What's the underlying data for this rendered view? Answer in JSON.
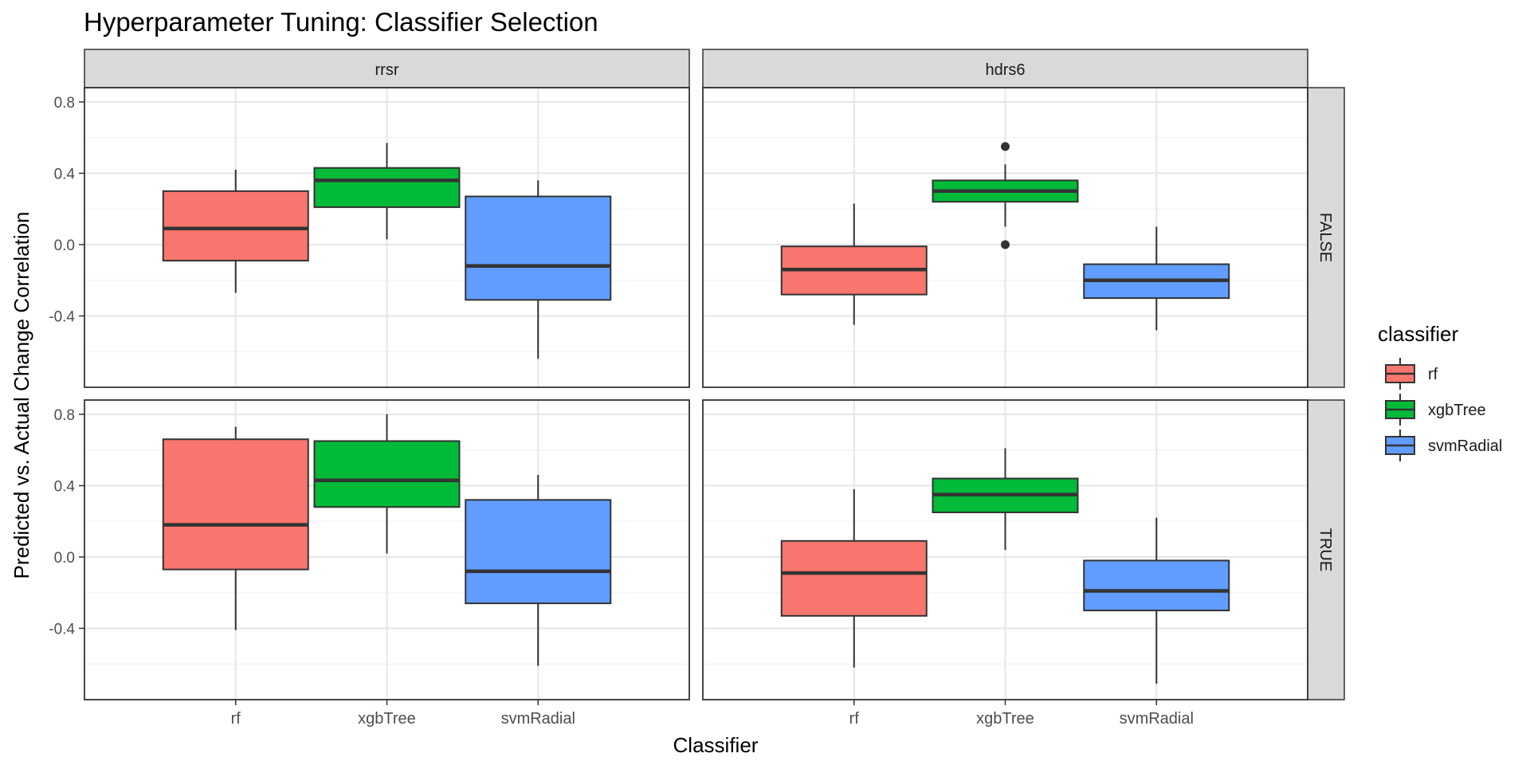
{
  "chart_data": {
    "type": "boxplot",
    "title": "Hyperparameter Tuning: Classifier Selection",
    "xlabel": "Classifier",
    "ylabel": "Predicted vs. Actual Change Correlation",
    "categories": [
      "rf",
      "xgbTree",
      "svmRadial"
    ],
    "facet_columns": [
      "rrsr",
      "hdrs6"
    ],
    "facet_rows": [
      "FALSE",
      "TRUE"
    ],
    "ylim": [
      -0.8,
      0.88
    ],
    "yticks": [
      -0.4,
      0.0,
      0.4,
      0.8
    ],
    "ytick_labels": [
      "-0.4",
      "0.0",
      "0.4",
      "0.8"
    ],
    "grid": true,
    "legend": {
      "title": "classifier",
      "position": "right",
      "entries": [
        "rf",
        "xgbTree",
        "svmRadial"
      ]
    },
    "colors": {
      "rf": "#F8766D",
      "xgbTree": "#00BA38",
      "svmRadial": "#619CFF"
    },
    "panels": [
      {
        "col": "rrsr",
        "row": "FALSE",
        "boxes": [
          {
            "category": "rf",
            "whisker_low": -0.27,
            "q1": -0.09,
            "median": 0.09,
            "q3": 0.3,
            "whisker_high": 0.42,
            "outliers": []
          },
          {
            "category": "xgbTree",
            "whisker_low": 0.03,
            "q1": 0.21,
            "median": 0.36,
            "q3": 0.43,
            "whisker_high": 0.57,
            "outliers": []
          },
          {
            "category": "svmRadial",
            "whisker_low": -0.64,
            "q1": -0.31,
            "median": -0.12,
            "q3": 0.27,
            "whisker_high": 0.36,
            "outliers": []
          }
        ]
      },
      {
        "col": "hdrs6",
        "row": "FALSE",
        "boxes": [
          {
            "category": "rf",
            "whisker_low": -0.45,
            "q1": -0.28,
            "median": -0.14,
            "q3": -0.01,
            "whisker_high": 0.23,
            "outliers": []
          },
          {
            "category": "xgbTree",
            "whisker_low": 0.1,
            "q1": 0.24,
            "median": 0.3,
            "q3": 0.36,
            "whisker_high": 0.45,
            "outliers": [
              0.55,
              0.0
            ]
          },
          {
            "category": "svmRadial",
            "whisker_low": -0.48,
            "q1": -0.3,
            "median": -0.2,
            "q3": -0.11,
            "whisker_high": 0.1,
            "outliers": []
          }
        ]
      },
      {
        "col": "rrsr",
        "row": "TRUE",
        "boxes": [
          {
            "category": "rf",
            "whisker_low": -0.41,
            "q1": -0.07,
            "median": 0.18,
            "q3": 0.66,
            "whisker_high": 0.73,
            "outliers": []
          },
          {
            "category": "xgbTree",
            "whisker_low": 0.02,
            "q1": 0.28,
            "median": 0.43,
            "q3": 0.65,
            "whisker_high": 0.8,
            "outliers": []
          },
          {
            "category": "svmRadial",
            "whisker_low": -0.61,
            "q1": -0.26,
            "median": -0.08,
            "q3": 0.32,
            "whisker_high": 0.46,
            "outliers": []
          }
        ]
      },
      {
        "col": "hdrs6",
        "row": "TRUE",
        "boxes": [
          {
            "category": "rf",
            "whisker_low": -0.62,
            "q1": -0.33,
            "median": -0.09,
            "q3": 0.09,
            "whisker_high": 0.38,
            "outliers": []
          },
          {
            "category": "xgbTree",
            "whisker_low": 0.04,
            "q1": 0.25,
            "median": 0.35,
            "q3": 0.44,
            "whisker_high": 0.61,
            "outliers": []
          },
          {
            "category": "svmRadial",
            "whisker_low": -0.71,
            "q1": -0.3,
            "median": -0.19,
            "q3": -0.02,
            "whisker_high": 0.22,
            "outliers": []
          }
        ]
      }
    ]
  }
}
